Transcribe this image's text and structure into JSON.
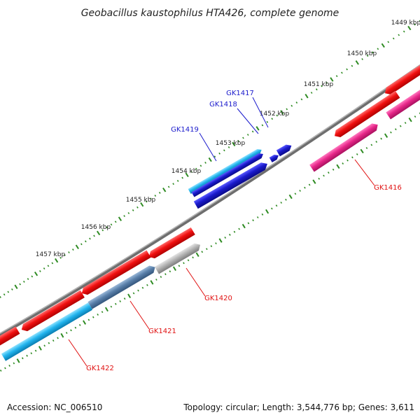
{
  "title": "Geobacillus kaustophilus HTA426, complete genome",
  "accession": "Accession: NC_006510",
  "topology": "Topology: circular; Length: 3,544,776 bp; Genes: 3,611",
  "colors": {
    "backbone": "#8a8a8a",
    "tick": "#2e8b22",
    "label_blue": "#1a1acc",
    "label_red": "#e01010",
    "gene_red": "#f01010",
    "gene_pink": "#ee2288",
    "gene_lightblue": "#22b4ee",
    "gene_darkblue": "#1a1acc",
    "gene_gray": "#aaaaaa",
    "gene_steel": "#5a80aa"
  },
  "kbp_labels": [
    "1449 kbp",
    "1450 kbp",
    "1451 kbp",
    "1452 kbp",
    "1453 kbp",
    "1454 kbp",
    "1455 kbp",
    "1456 kbp",
    "1457 kbp"
  ],
  "genes": [
    {
      "name": "GK1416",
      "strand": "minus",
      "color": "pink"
    },
    {
      "name": "GK1417",
      "strand": "plus",
      "color": "darkblue"
    },
    {
      "name": "GK1418",
      "strand": "plus",
      "color": "darkblue"
    },
    {
      "name": "GK1419",
      "strand": "plus",
      "color": "lightblue"
    },
    {
      "name": "GK1420",
      "strand": "minus",
      "color": "gray"
    },
    {
      "name": "GK1421",
      "strand": "minus",
      "color": "steel"
    },
    {
      "name": "GK1422",
      "strand": "minus",
      "color": "lightblue"
    }
  ]
}
